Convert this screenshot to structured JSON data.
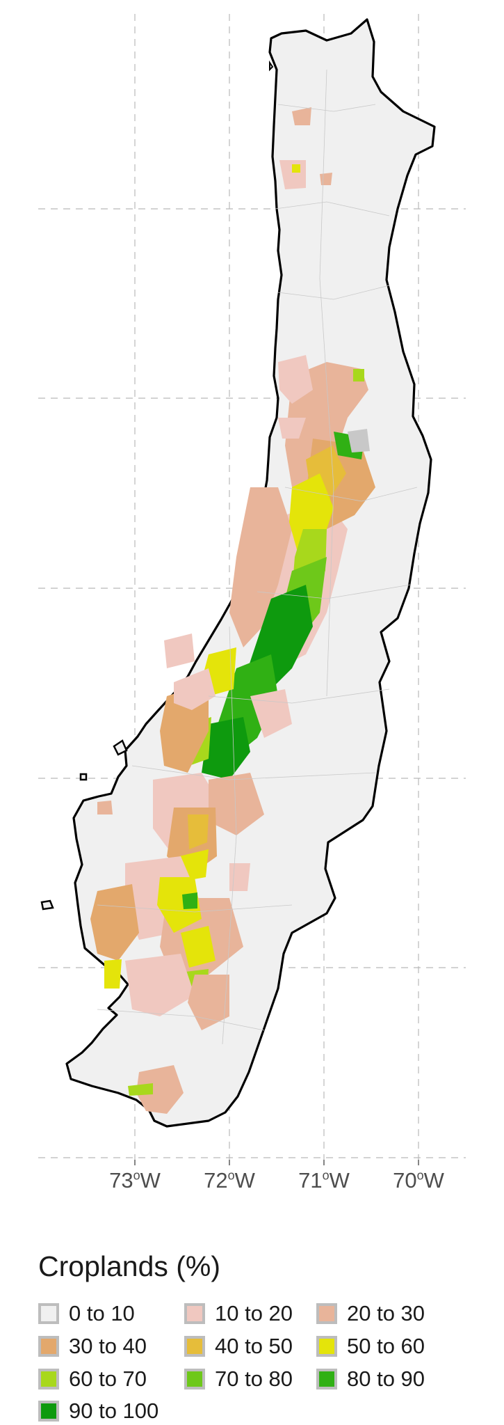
{
  "map": {
    "longitude_ticks": [
      {
        "deg": "73",
        "suffix": "W"
      },
      {
        "deg": "72",
        "suffix": "W"
      },
      {
        "deg": "71",
        "suffix": "W"
      },
      {
        "deg": "70",
        "suffix": "W"
      }
    ],
    "degree_symbol": "o",
    "colors": {
      "land": "#f0f0f0",
      "border": "#c8c8c8",
      "coast": "#000000",
      "grid": "#b9b9b9"
    }
  },
  "legend": {
    "title": "Croplands (%)",
    "items": [
      {
        "label": "0 to 10",
        "color": "#f0f0f0"
      },
      {
        "label": "10 to 20",
        "color": "#f0c8c0"
      },
      {
        "label": "20 to 30",
        "color": "#e8b49a"
      },
      {
        "label": "30 to 40",
        "color": "#e3a86c"
      },
      {
        "label": "40 to 50",
        "color": "#e6bd3a"
      },
      {
        "label": "50 to 60",
        "color": "#e4e40a"
      },
      {
        "label": "60 to 70",
        "color": "#a8d81c"
      },
      {
        "label": "70 to 80",
        "color": "#6ec81a"
      },
      {
        "label": "80 to 90",
        "color": "#30b014"
      },
      {
        "label": "90 to 100",
        "color": "#0e9a0e"
      }
    ]
  }
}
